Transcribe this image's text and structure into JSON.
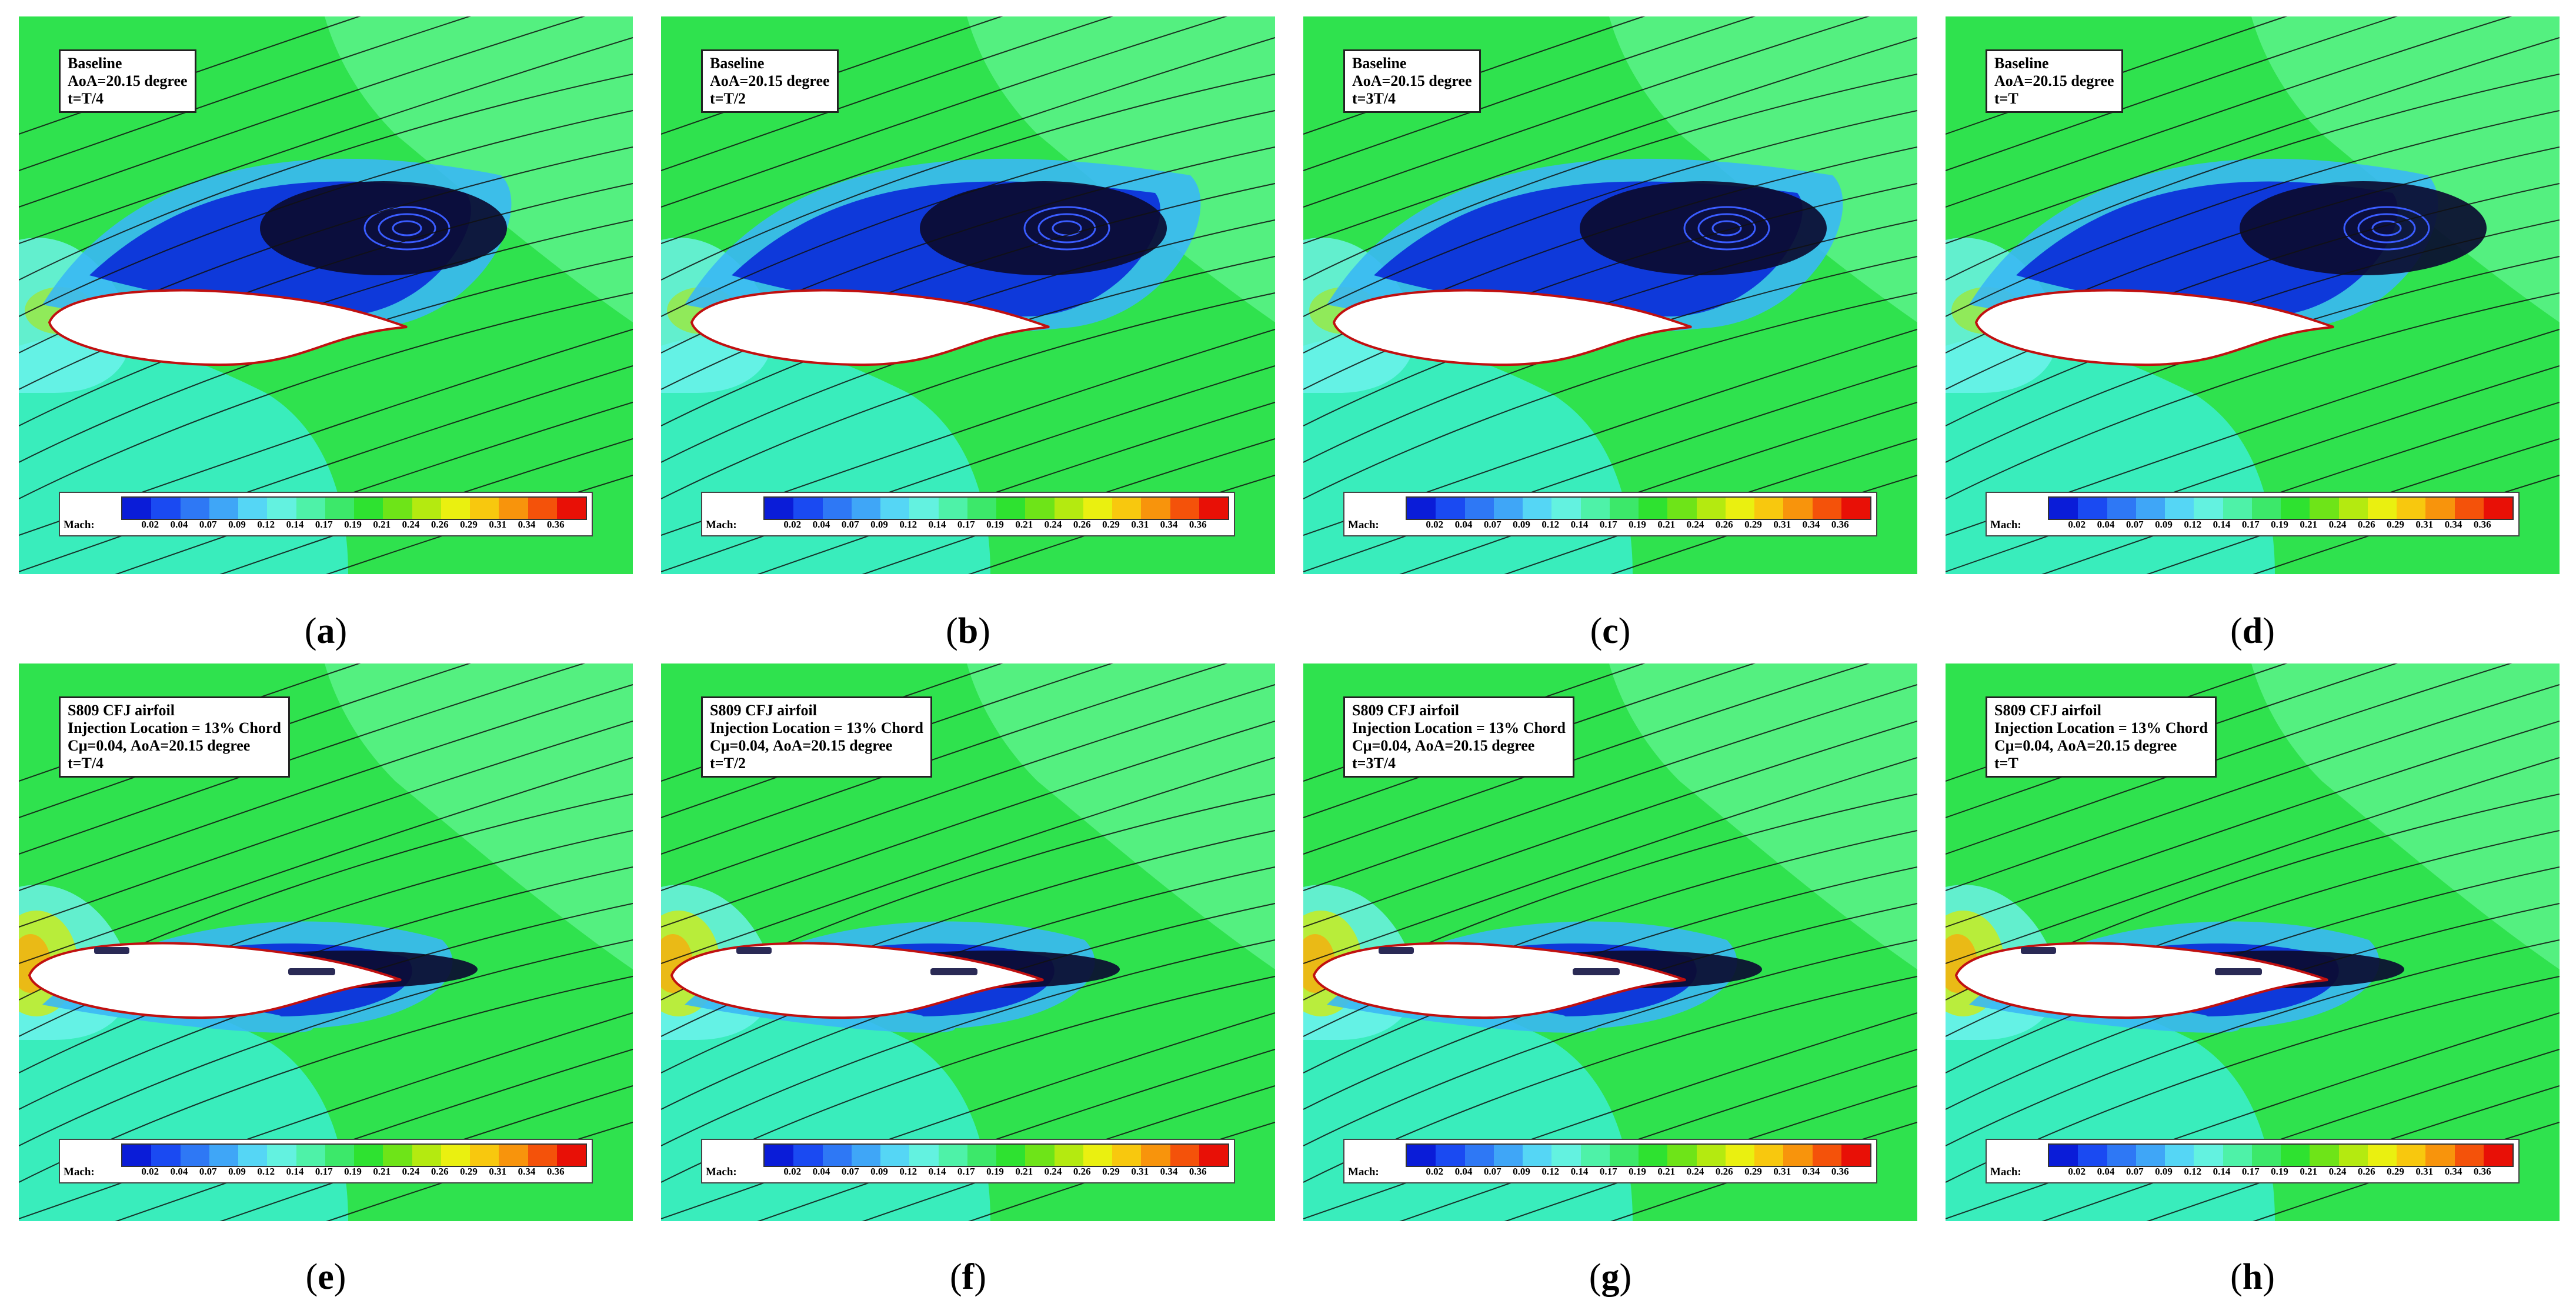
{
  "legend": {
    "label": "Mach:",
    "ticks": [
      "0.02",
      "0.04",
      "0.07",
      "0.09",
      "0.12",
      "0.14",
      "0.17",
      "0.19",
      "0.21",
      "0.24",
      "0.26",
      "0.29",
      "0.31",
      "0.34",
      "0.36"
    ],
    "colors": [
      "#0a1cd8",
      "#1a4af2",
      "#2e78f5",
      "#3fa6f7",
      "#55d6f5",
      "#63f2e0",
      "#4ef2a8",
      "#3ce86a",
      "#2ee230",
      "#6ee418",
      "#b4ea10",
      "#eaf010",
      "#f8c80e",
      "#f8940c",
      "#f4520a",
      "#e81006"
    ]
  },
  "colors": {
    "freestream_green": "#2fe24e",
    "light_green": "#54f080",
    "cyan": "#3ef0e2",
    "light_blue": "#3ab8f4",
    "deep_blue": "#0a2ad8",
    "separation_core": "#0b0b30",
    "airfoil": "#ffffff",
    "airfoil_edge": "#c01010"
  },
  "panels": [
    {
      "id": "a",
      "caption": "a",
      "info": [
        "Baseline",
        "AoA=20.15 degree",
        "t=T/4"
      ],
      "type": "baseline"
    },
    {
      "id": "b",
      "caption": "b",
      "info": [
        "Baseline",
        "AoA=20.15 degree",
        "t=T/2"
      ],
      "type": "baseline"
    },
    {
      "id": "c",
      "caption": "c",
      "info": [
        "Baseline",
        "AoA=20.15 degree",
        "t=3T/4"
      ],
      "type": "baseline"
    },
    {
      "id": "d",
      "caption": "d",
      "info": [
        "Baseline",
        "AoA=20.15 degree",
        "t=T"
      ],
      "type": "baseline"
    },
    {
      "id": "e",
      "caption": "e",
      "info": [
        "S809 CFJ airfoil",
        "Injection Location = 13% Chord",
        "Cμ=0.04, AoA=20.15 degree",
        "t=T/4"
      ],
      "type": "cfj"
    },
    {
      "id": "f",
      "caption": "f",
      "info": [
        "S809 CFJ airfoil",
        "Injection Location = 13% Chord",
        "Cμ=0.04, AoA=20.15 degree",
        "t=T/2"
      ],
      "type": "cfj"
    },
    {
      "id": "g",
      "caption": "g",
      "info": [
        "S809 CFJ airfoil",
        "Injection Location = 13% Chord",
        "Cμ=0.04, AoA=20.15 degree",
        "t=3T/4"
      ],
      "type": "cfj"
    },
    {
      "id": "h",
      "caption": "h",
      "info": [
        "S809 CFJ airfoil",
        "Injection Location = 13% Chord",
        "Cμ=0.04, AoA=20.15 degree",
        "t=T"
      ],
      "type": "cfj"
    }
  ]
}
